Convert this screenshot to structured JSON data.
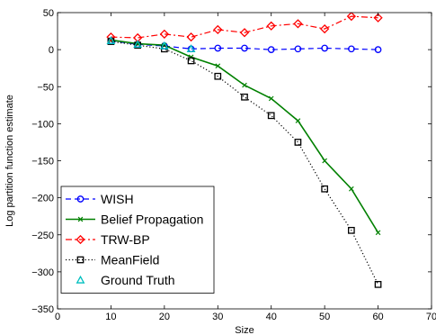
{
  "chart_data": {
    "type": "line",
    "title": "",
    "xlabel": "Size",
    "ylabel": "Log partition function estimate",
    "xlim": [
      0,
      70
    ],
    "ylim": [
      -350,
      50
    ],
    "xticks": [
      0,
      10,
      20,
      30,
      40,
      50,
      60,
      70
    ],
    "yticks": [
      -350,
      -300,
      -250,
      -200,
      -150,
      -100,
      -50,
      0,
      50
    ],
    "grid": false,
    "legend_position": "bottom-left",
    "series": [
      {
        "name": "WISH",
        "color": "#0000ff",
        "line_style": "dashed",
        "marker": "circle",
        "x": [
          10,
          15,
          20,
          25,
          30,
          35,
          40,
          45,
          50,
          55,
          60
        ],
        "y": [
          12,
          7,
          5,
          1,
          2,
          2,
          0,
          1,
          2,
          1,
          0
        ]
      },
      {
        "name": "Belief Propagation",
        "color": "#008000",
        "line_style": "solid",
        "marker": "x",
        "x": [
          10,
          15,
          20,
          25,
          30,
          35,
          40,
          45,
          50,
          55,
          60
        ],
        "y": [
          13,
          8,
          6,
          -10,
          -22,
          -48,
          -66,
          -96,
          -150,
          -188,
          -247
        ]
      },
      {
        "name": "TRW-BP",
        "color": "#ff0000",
        "line_style": "dashdot",
        "marker": "diamond",
        "x": [
          10,
          15,
          20,
          25,
          30,
          35,
          40,
          45,
          50,
          55,
          60
        ],
        "y": [
          17,
          16,
          21,
          17,
          27,
          23,
          32,
          35,
          28,
          45,
          43
        ]
      },
      {
        "name": "MeanField",
        "color": "#000000",
        "line_style": "dotted",
        "marker": "square",
        "x": [
          10,
          15,
          20,
          25,
          30,
          35,
          40,
          45,
          50,
          55,
          60
        ],
        "y": [
          11,
          6,
          1,
          -15,
          -36,
          -64,
          -89,
          -125,
          -188,
          -244,
          -317
        ]
      },
      {
        "name": "Ground Truth",
        "color": "#00bfbf",
        "line_style": "none",
        "marker": "triangle",
        "x": [
          10,
          15,
          20,
          25
        ],
        "y": [
          12,
          7,
          5,
          1
        ]
      }
    ]
  }
}
